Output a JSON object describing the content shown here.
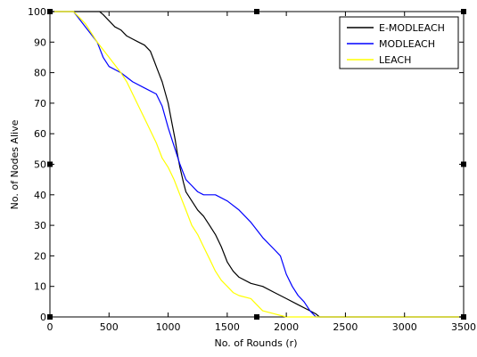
{
  "chart_data": {
    "type": "line",
    "title": "",
    "xlabel": "No. of Rounds (r)",
    "ylabel": "No. of Nodes Alive",
    "xlim": [
      0,
      3500
    ],
    "ylim": [
      0,
      100
    ],
    "xticks": [
      0,
      500,
      1000,
      1500,
      2000,
      2500,
      3000,
      3500
    ],
    "yticks": [
      0,
      10,
      20,
      30,
      40,
      50,
      60,
      70,
      80,
      90,
      100
    ],
    "grid": false,
    "legend_position": "top-right",
    "series": [
      {
        "name": "E-MODLEACH",
        "color": "#000000",
        "points": [
          [
            0,
            100
          ],
          [
            420,
            100
          ],
          [
            450,
            99
          ],
          [
            500,
            97
          ],
          [
            550,
            95
          ],
          [
            600,
            94
          ],
          [
            650,
            92
          ],
          [
            700,
            91
          ],
          [
            750,
            90
          ],
          [
            800,
            89
          ],
          [
            850,
            87
          ],
          [
            880,
            84
          ],
          [
            910,
            81
          ],
          [
            950,
            77
          ],
          [
            1000,
            70
          ],
          [
            1030,
            64
          ],
          [
            1060,
            58
          ],
          [
            1080,
            53
          ],
          [
            1100,
            49
          ],
          [
            1130,
            44
          ],
          [
            1150,
            41
          ],
          [
            1200,
            38
          ],
          [
            1250,
            35
          ],
          [
            1300,
            33
          ],
          [
            1350,
            30
          ],
          [
            1400,
            27
          ],
          [
            1450,
            23
          ],
          [
            1500,
            18
          ],
          [
            1550,
            15
          ],
          [
            1600,
            13
          ],
          [
            1700,
            11
          ],
          [
            1800,
            10
          ],
          [
            1900,
            8
          ],
          [
            2000,
            6
          ],
          [
            2100,
            4
          ],
          [
            2200,
            2
          ],
          [
            2250,
            1
          ],
          [
            2280,
            0
          ],
          [
            3500,
            0
          ]
        ]
      },
      {
        "name": "MODLEACH",
        "color": "#0000ff",
        "points": [
          [
            0,
            100
          ],
          [
            200,
            100
          ],
          [
            300,
            95
          ],
          [
            400,
            90
          ],
          [
            450,
            85
          ],
          [
            500,
            82
          ],
          [
            600,
            80
          ],
          [
            700,
            77
          ],
          [
            800,
            75
          ],
          [
            900,
            73
          ],
          [
            950,
            69
          ],
          [
            1000,
            62
          ],
          [
            1050,
            56
          ],
          [
            1100,
            50
          ],
          [
            1150,
            45
          ],
          [
            1200,
            43
          ],
          [
            1250,
            41
          ],
          [
            1300,
            40
          ],
          [
            1400,
            40
          ],
          [
            1500,
            38
          ],
          [
            1600,
            35
          ],
          [
            1700,
            31
          ],
          [
            1800,
            26
          ],
          [
            1900,
            22
          ],
          [
            1950,
            20
          ],
          [
            2000,
            14
          ],
          [
            2050,
            10
          ],
          [
            2100,
            7
          ],
          [
            2150,
            5
          ],
          [
            2200,
            2
          ],
          [
            2250,
            0
          ],
          [
            3500,
            0
          ]
        ]
      },
      {
        "name": "LEACH",
        "color": "#ffff00",
        "points": [
          [
            0,
            100
          ],
          [
            200,
            100
          ],
          [
            300,
            96
          ],
          [
            400,
            90
          ],
          [
            500,
            85
          ],
          [
            600,
            80
          ],
          [
            650,
            77
          ],
          [
            700,
            73
          ],
          [
            750,
            69
          ],
          [
            800,
            65
          ],
          [
            850,
            61
          ],
          [
            900,
            57
          ],
          [
            950,
            52
          ],
          [
            1000,
            49
          ],
          [
            1050,
            45
          ],
          [
            1100,
            40
          ],
          [
            1150,
            35
          ],
          [
            1200,
            30
          ],
          [
            1250,
            27
          ],
          [
            1300,
            23
          ],
          [
            1350,
            19
          ],
          [
            1400,
            15
          ],
          [
            1450,
            12
          ],
          [
            1500,
            10
          ],
          [
            1550,
            8
          ],
          [
            1600,
            7
          ],
          [
            1700,
            6
          ],
          [
            1750,
            4
          ],
          [
            1800,
            2
          ],
          [
            1900,
            1
          ],
          [
            2000,
            0
          ],
          [
            3500,
            0
          ]
        ]
      }
    ]
  }
}
